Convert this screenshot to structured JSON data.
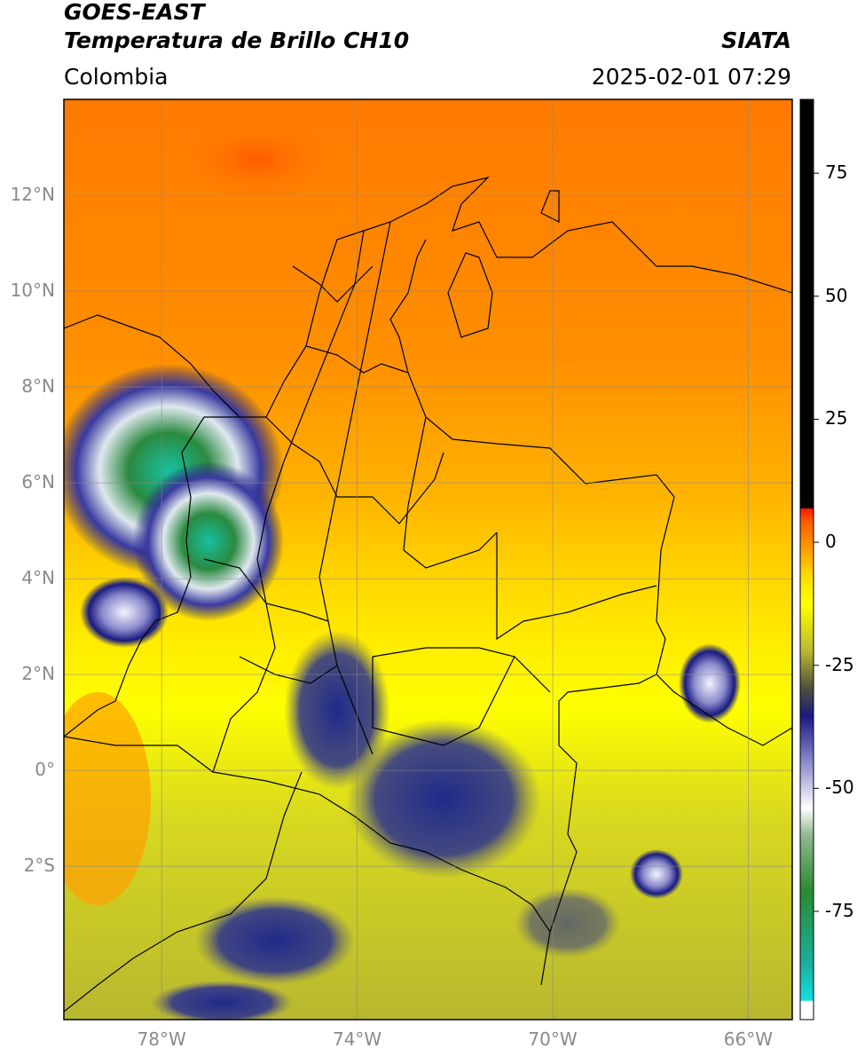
{
  "header": {
    "satellite": "GOES-EAST",
    "product": "Temperatura de Brillo CH10",
    "organization": "SIATA",
    "region": "Colombia",
    "datetime": "2025-02-01 07:29"
  },
  "map": {
    "lon_range": [
      -80,
      -65.1
    ],
    "lat_range": [
      -5.2,
      14
    ],
    "lat_ticks": [
      "12°N",
      "10°N",
      "8°N",
      "6°N",
      "4°N",
      "2°N",
      "0°",
      "2°S"
    ],
    "lat_values": [
      12,
      10,
      8,
      6,
      4,
      2,
      0,
      -2
    ],
    "lon_ticks": [
      "78°W",
      "74°W",
      "70°W",
      "66°W"
    ],
    "lon_values": [
      -78,
      -74,
      -70,
      -66
    ],
    "grid": true
  },
  "colorbar": {
    "ticks": [
      "75",
      "50",
      "25",
      "0",
      "-25",
      "-50",
      "-75"
    ],
    "tick_values": [
      75,
      50,
      25,
      0,
      -25,
      -50,
      -75
    ],
    "range": [
      -97,
      90
    ],
    "colors": {
      "black": "#000000",
      "red": "#ff1a00",
      "orange": "#ff8c00",
      "yellow": "#ffff00",
      "olive": "#b8b830",
      "navy": "#1a1a80",
      "white": "#ffffff",
      "green": "#2a8a30",
      "cyan": "#10e0e0"
    }
  }
}
